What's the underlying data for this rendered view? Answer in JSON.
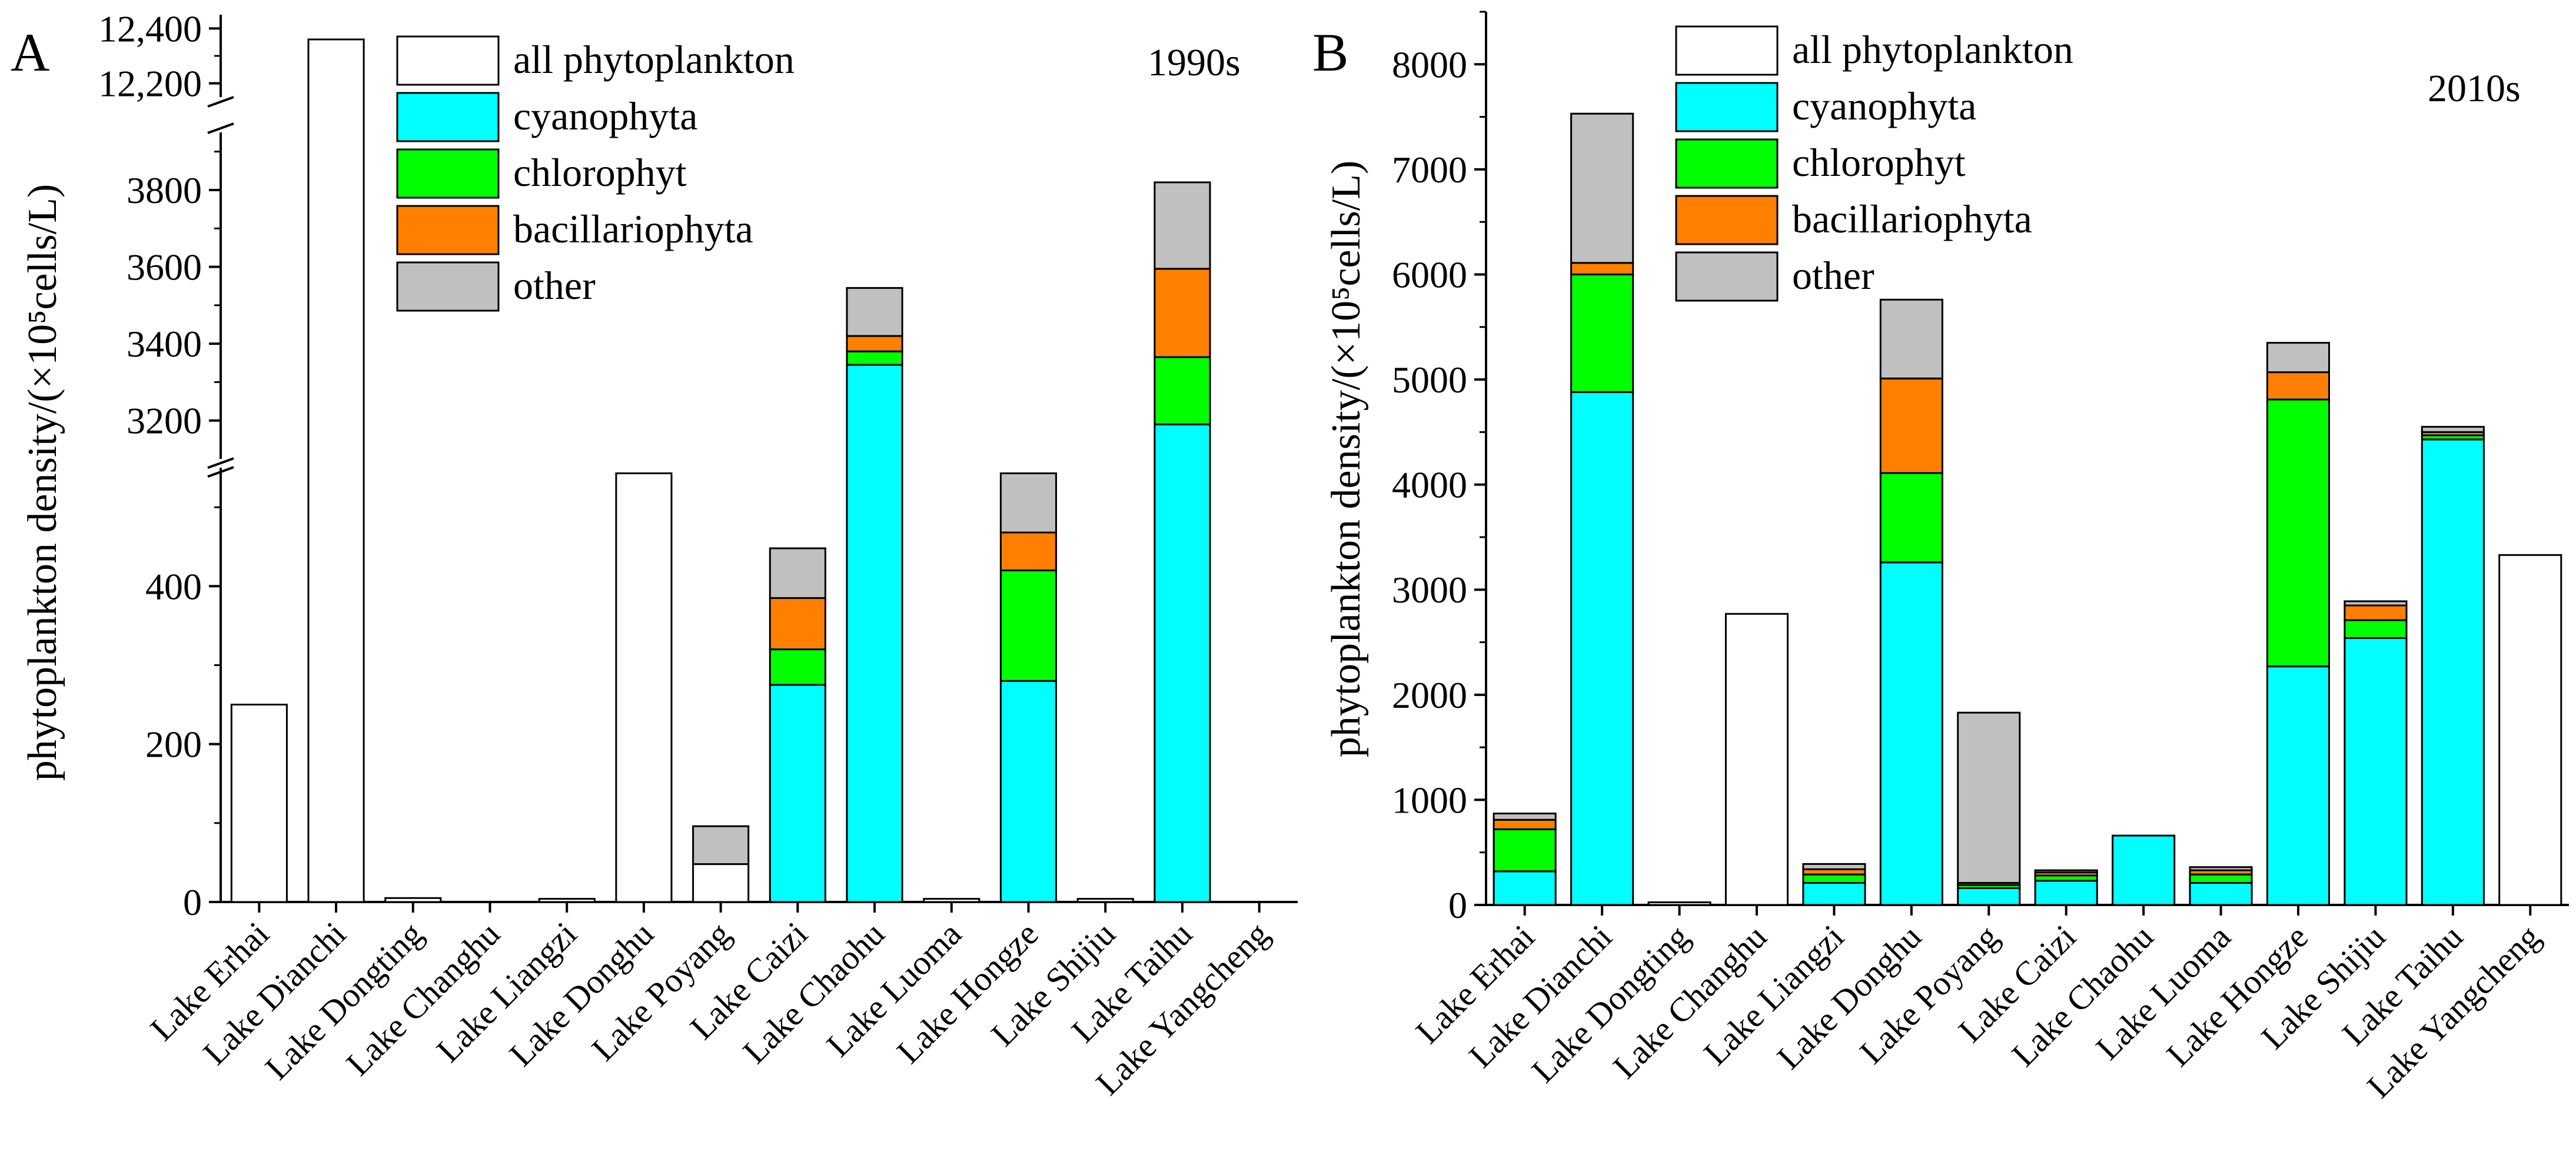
{
  "colors": {
    "all_phytoplankton": "#ffffff",
    "cyanophyta": "#00ffff",
    "chlorophyt": "#00ff00",
    "bacillariophyta": "#ff8000",
    "other": "#c0c0c0"
  },
  "legend": [
    "all phytoplankton",
    "cyanophyta",
    "chlorophyt",
    "bacillariophyta",
    "other"
  ],
  "chart_data": [
    {
      "type": "bar",
      "stacked": true,
      "panel": "A",
      "annotation": "1990s",
      "ylabel": "phytoplankton density/(×10⁵cells/L)",
      "y_broken": true,
      "y_segments": [
        [
          0,
          550
        ],
        [
          3100,
          3950
        ],
        [
          12150,
          12450
        ]
      ],
      "y_ticks_labels": [
        "0",
        "200",
        "400",
        "3200",
        "3400",
        "3600",
        "3800",
        "12,200",
        "12,400"
      ],
      "categories": [
        "Lake Erhai",
        "Lake Dianchi",
        "Lake Dongting",
        "Lake Changhu",
        "Lake Liangzi",
        "Lake Donghu",
        "Lake Poyang",
        "Lake Caizi",
        "Lake Chaohu",
        "Lake Luoma",
        "Lake Hongze",
        "Lake Shijiu",
        "Lake Taihu",
        "Lake Yangcheng"
      ],
      "series": [
        {
          "name": "all phytoplankton",
          "values": [
            250,
            12360,
            5,
            0,
            4,
            543,
            48,
            0,
            0,
            4,
            0,
            4,
            0,
            0
          ]
        },
        {
          "name": "cyanophyta",
          "values": [
            0,
            0,
            0,
            0,
            0,
            0,
            0,
            275,
            3345,
            0,
            280,
            0,
            3190,
            0
          ]
        },
        {
          "name": "chlorophyt",
          "values": [
            0,
            0,
            0,
            0,
            0,
            0,
            0,
            45,
            35,
            0,
            140,
            0,
            175,
            0
          ]
        },
        {
          "name": "bacillariophyta",
          "values": [
            0,
            0,
            0,
            0,
            0,
            0,
            0,
            65,
            40,
            0,
            48,
            0,
            230,
            0
          ]
        },
        {
          "name": "other",
          "values": [
            0,
            0,
            0,
            0,
            0,
            0,
            48,
            63,
            125,
            0,
            75,
            0,
            225,
            0
          ]
        }
      ]
    },
    {
      "type": "bar",
      "stacked": true,
      "panel": "B",
      "annotation": "2010s",
      "ylabel": "phytoplankton density/(×10⁵cells/L)",
      "ylim": [
        0,
        8500
      ],
      "y_ticks_labels": [
        "0",
        "1000",
        "2000",
        "3000",
        "4000",
        "5000",
        "6000",
        "7000",
        "8000"
      ],
      "categories": [
        "Lake Erhai",
        "Lake Dianchi",
        "Lake Dongting",
        "Lake Changhu",
        "Lake Liangzi",
        "Lake Donghu",
        "Lake Poyang",
        "Lake Caizi",
        "Lake Chaohu",
        "Lake Luoma",
        "Lake Hongze",
        "Lake Shijiu",
        "Lake Taihu",
        "Lake Yangcheng"
      ],
      "series": [
        {
          "name": "all phytoplankton",
          "values": [
            0,
            0,
            25,
            2770,
            0,
            0,
            0,
            0,
            0,
            0,
            0,
            0,
            0,
            3330
          ]
        },
        {
          "name": "cyanophyta",
          "values": [
            320,
            4880,
            0,
            0,
            210,
            3260,
            160,
            230,
            660,
            210,
            2270,
            2540,
            4430,
            0
          ]
        },
        {
          "name": "chlorophyt",
          "values": [
            400,
            1120,
            0,
            0,
            80,
            850,
            30,
            50,
            0,
            80,
            2540,
            170,
            40,
            0
          ]
        },
        {
          "name": "bacillariophyta",
          "values": [
            90,
            110,
            0,
            0,
            50,
            900,
            20,
            30,
            0,
            40,
            260,
            140,
            30,
            0
          ]
        },
        {
          "name": "other",
          "values": [
            60,
            1420,
            0,
            0,
            50,
            750,
            1620,
            20,
            0,
            30,
            280,
            40,
            50,
            0
          ]
        }
      ]
    }
  ]
}
